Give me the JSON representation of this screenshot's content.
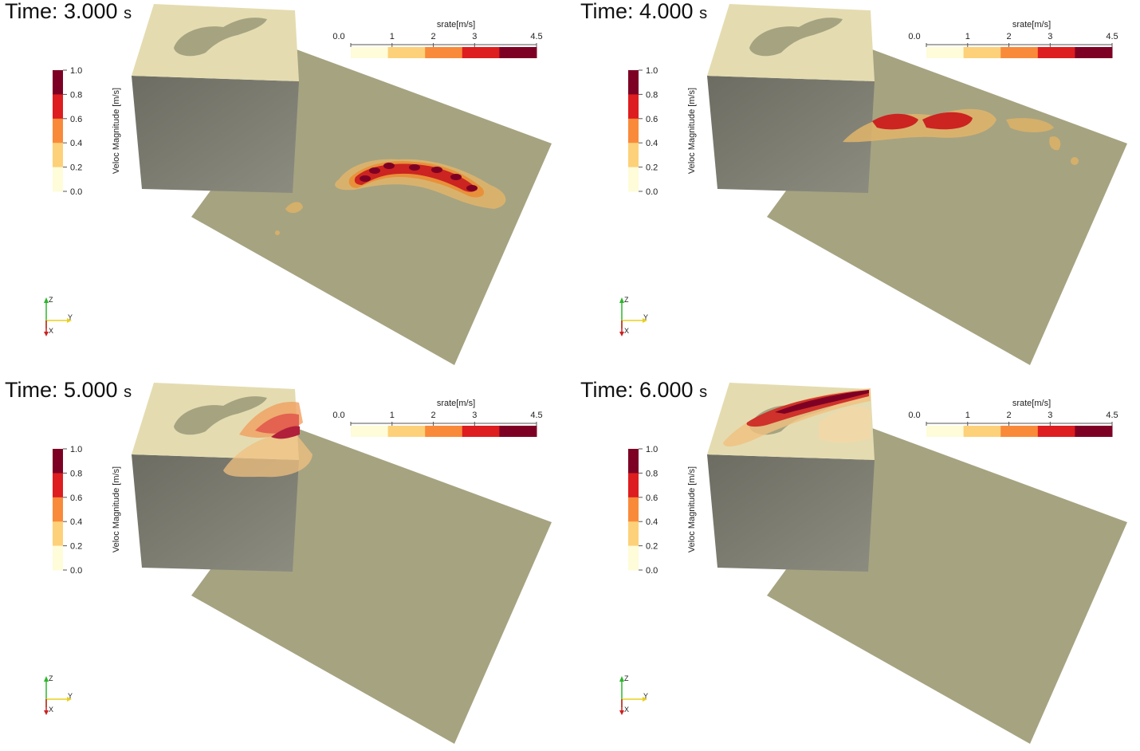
{
  "panels": [
    {
      "time_label": "Time:",
      "time_value": "3.000",
      "time_unit": "s"
    },
    {
      "time_label": "Time:",
      "time_value": "4.000",
      "time_unit": "s"
    },
    {
      "time_label": "Time:",
      "time_value": "5.000",
      "time_unit": "s"
    },
    {
      "time_label": "Time:",
      "time_value": "6.000",
      "time_unit": "s"
    }
  ],
  "srate_colorbar": {
    "title": "srate[m/s]",
    "ticks": [
      "0.0",
      "1",
      "2",
      "3",
      "4.5"
    ],
    "tick_values": [
      0.0,
      1,
      2,
      3,
      4.5
    ],
    "colors": [
      "#fefcd9",
      "#fdd17a",
      "#f98a3a",
      "#dd1d1f",
      "#7d0024"
    ]
  },
  "veloc_colorbar": {
    "title": "Veloc Magnitude [m/s]",
    "ticks": [
      "1.0",
      "0.8",
      "0.6",
      "0.4",
      "0.2",
      "0.0"
    ],
    "colors": [
      "#7d0024",
      "#dd1d1f",
      "#f98a3a",
      "#fdd17a",
      "#fefcd9"
    ]
  },
  "axes_labels": {
    "z": "Z",
    "y": "Y",
    "x": "X"
  },
  "scene_colors": {
    "fault_plane": "#a6a381",
    "box_top": "#e4dcb0",
    "box_side_dark": "#6c6c62",
    "box_side_light": "#8c8c80",
    "island": "#a6a381"
  }
}
